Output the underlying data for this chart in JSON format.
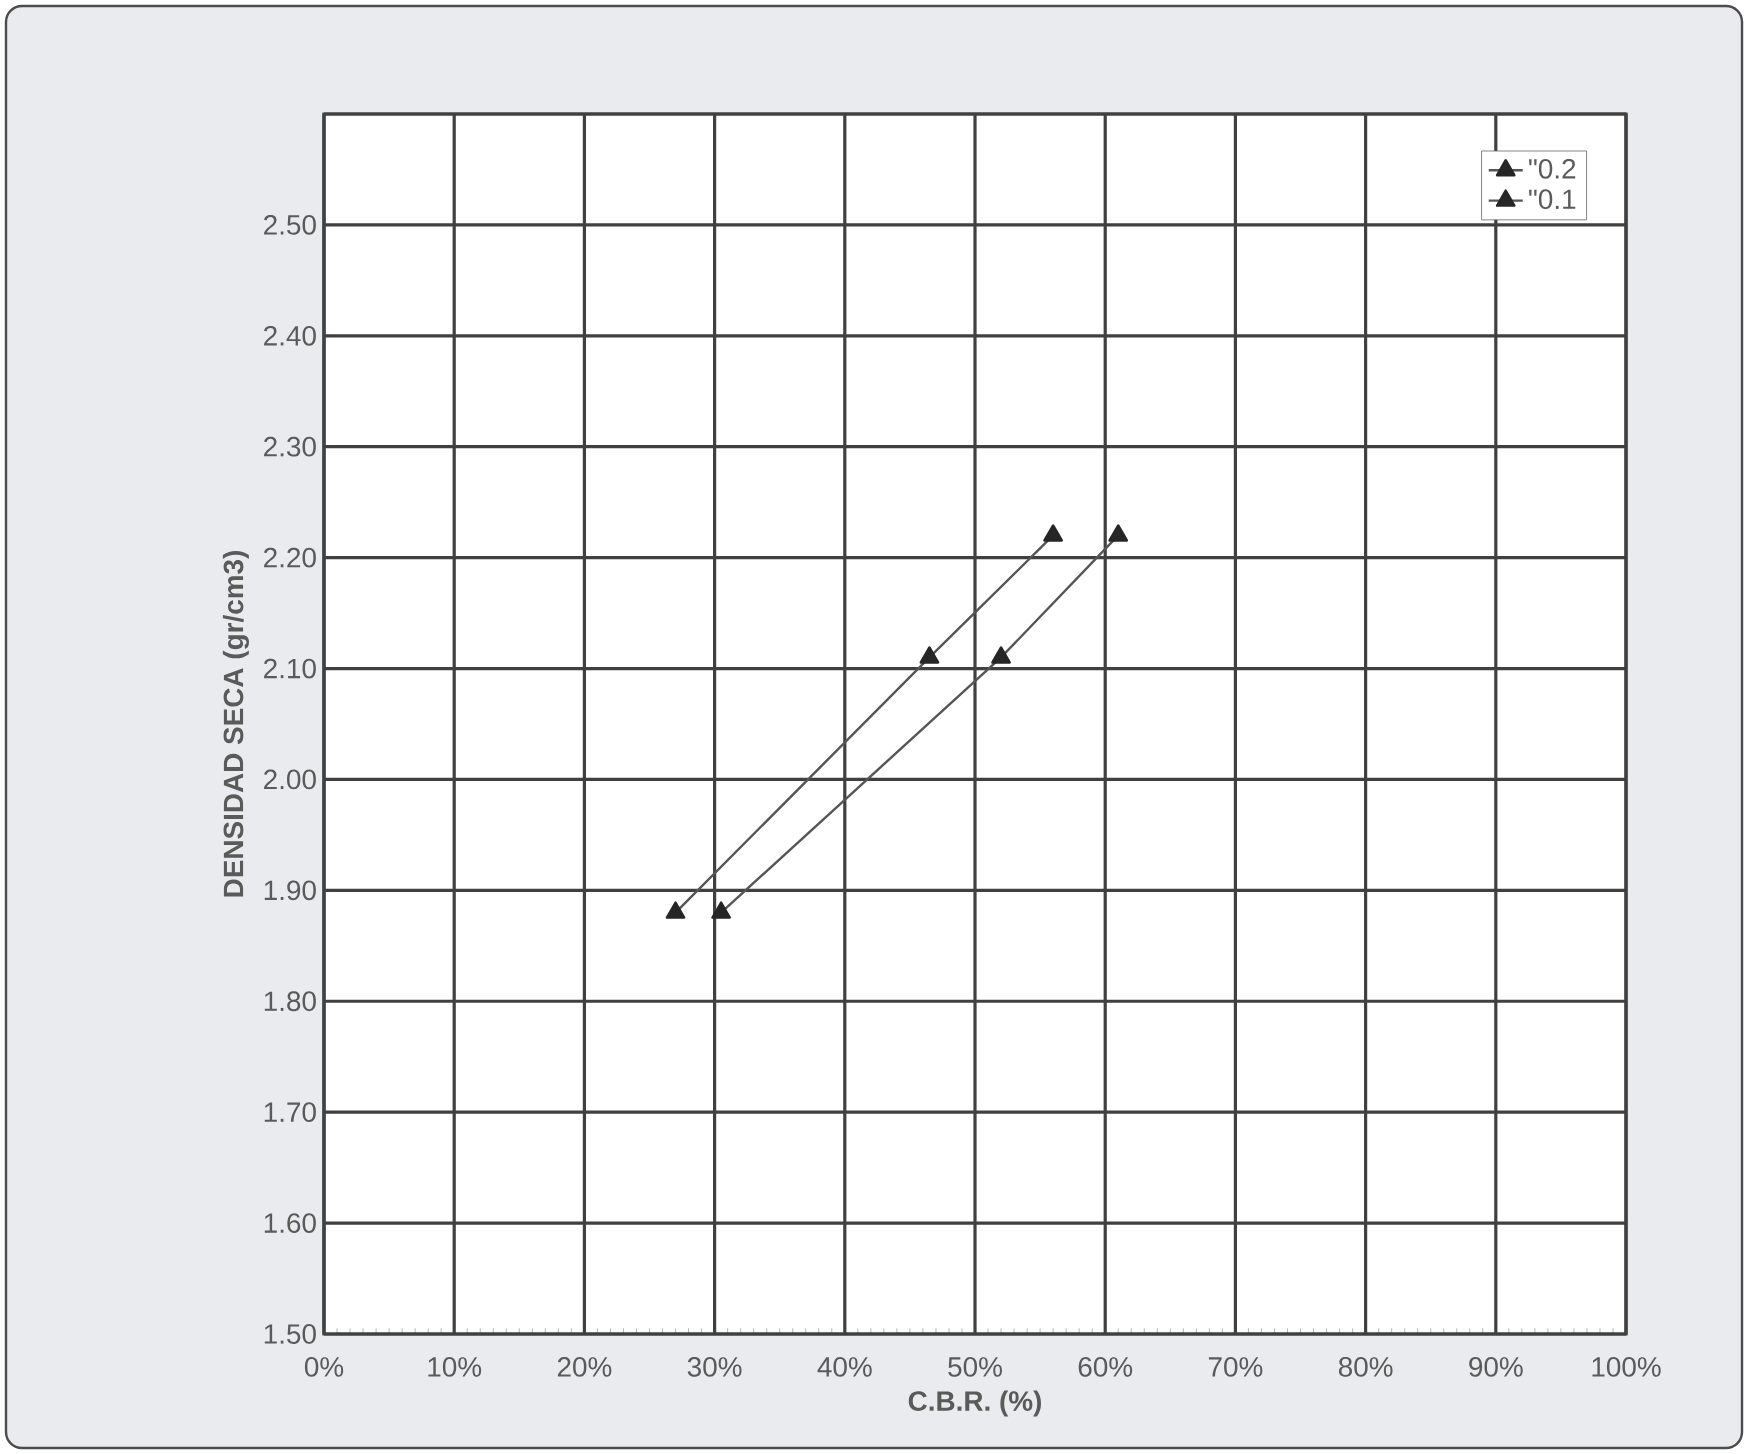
{
  "chart_data": {
    "type": "line",
    "xlabel": "C.B.R. (%)",
    "ylabel": "DENSIDAD SECA (gr/cm3)",
    "xlim": [
      0,
      100
    ],
    "xticks": [
      {
        "value": 0,
        "label": "0%"
      },
      {
        "value": 10,
        "label": "10%"
      },
      {
        "value": 20,
        "label": "20%"
      },
      {
        "value": 30,
        "label": "30%"
      },
      {
        "value": 40,
        "label": "40%"
      },
      {
        "value": 50,
        "label": "50%"
      },
      {
        "value": 60,
        "label": "60%"
      },
      {
        "value": 70,
        "label": "70%"
      },
      {
        "value": 80,
        "label": "80%"
      },
      {
        "value": 90,
        "label": "90%"
      },
      {
        "value": 100,
        "label": "100%"
      }
    ],
    "ylim": [
      1.5,
      2.6
    ],
    "yticks": [
      {
        "value": 1.5,
        "label": "1.50"
      },
      {
        "value": 1.6,
        "label": "1.60"
      },
      {
        "value": 1.7,
        "label": "1.70"
      },
      {
        "value": 1.8,
        "label": "1.80"
      },
      {
        "value": 1.9,
        "label": "1.90"
      },
      {
        "value": 2.0,
        "label": "2.00"
      },
      {
        "value": 2.1,
        "label": "2.10"
      },
      {
        "value": 2.2,
        "label": "2.20"
      },
      {
        "value": 2.3,
        "label": "2.30"
      },
      {
        "value": 2.4,
        "label": "2.40"
      },
      {
        "value": 2.5,
        "label": "2.50"
      },
      {
        "value": 2.6,
        "label": null
      }
    ],
    "grid": true,
    "legend": "top right",
    "marker": "triangle",
    "line_style": "solid",
    "series": [
      {
        "name": "\"0.2",
        "color": "#555555",
        "x": [
          27,
          46.5,
          56
        ],
        "values": [
          1.88,
          2.11,
          2.22
        ]
      },
      {
        "name": "\"0.1",
        "color": "#555555",
        "x": [
          30.5,
          52,
          61
        ],
        "values": [
          1.88,
          2.11,
          2.22
        ]
      }
    ]
  }
}
